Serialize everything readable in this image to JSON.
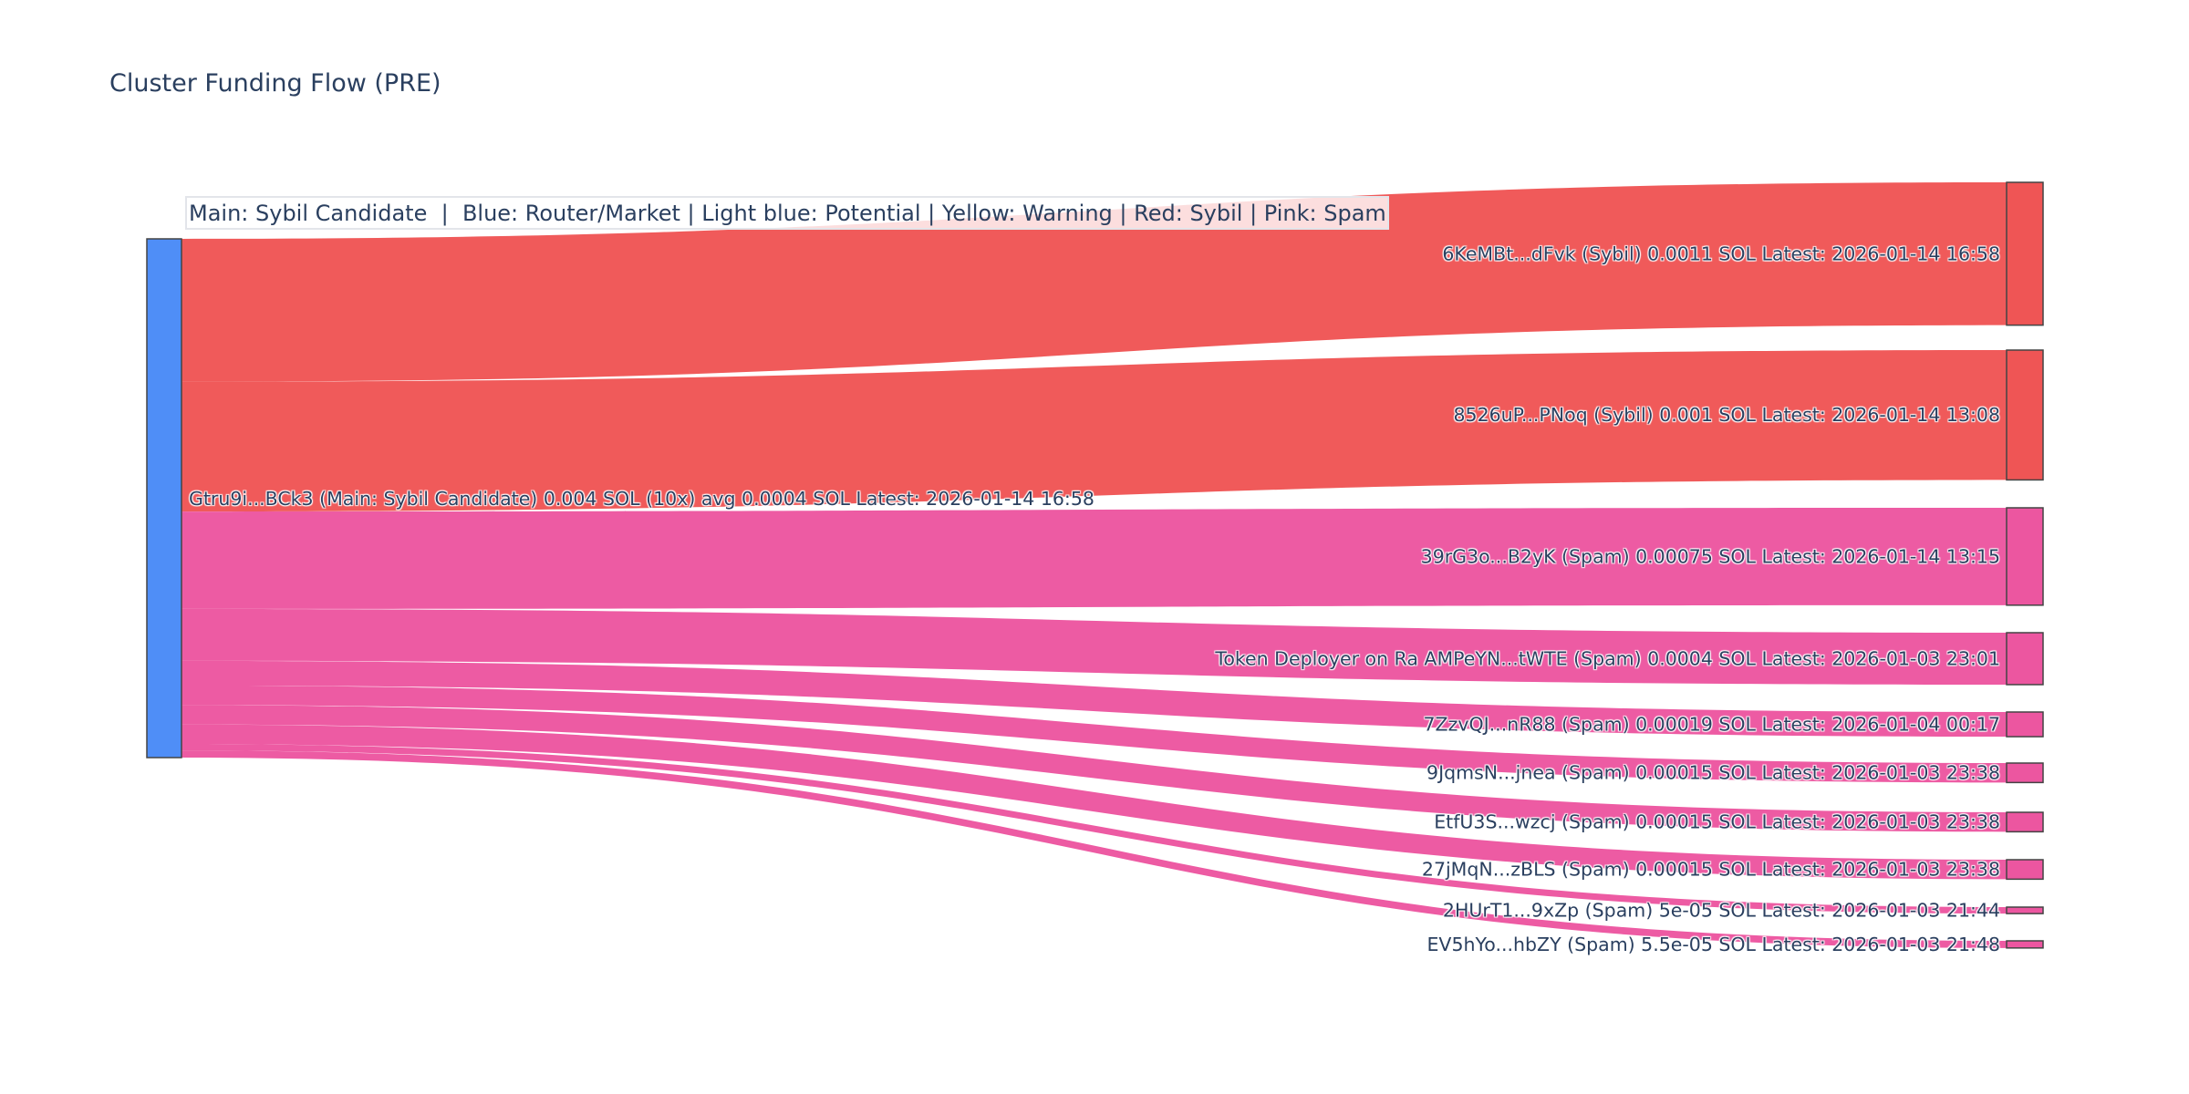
{
  "chart_data": {
    "type": "sankey",
    "title": "Cluster Funding Flow (PRE)",
    "annotation": "Main: Sybil Candidate  |  Blue: Router/Market | Light blue: Potential | Yellow: Warning | Red: Sybil | Pink: Spam",
    "colors": {
      "main": "#4f8ef7",
      "sybil": "#ef5555",
      "spam": "#ec56a0",
      "text": "#2a3f5f"
    },
    "source": {
      "label": "Gtru9i...BCk3 (Main: Sybil Candidate) 0.004 SOL (10x) avg 0.0004 SOL Latest: 2026-01-14 16:58",
      "category": "main",
      "value": 0.004
    },
    "targets": [
      {
        "label": "6KeMBt...dFvk (Sybil) 0.0011 SOL Latest: 2026-01-14 16:58",
        "category": "sybil",
        "value": 0.0011
      },
      {
        "label": "8526uP...PNoq (Sybil) 0.001 SOL Latest: 2026-01-14 13:08",
        "category": "sybil",
        "value": 0.001
      },
      {
        "label": "39rG3o...B2yK (Spam) 0.00075 SOL Latest: 2026-01-14 13:15",
        "category": "spam",
        "value": 0.00075
      },
      {
        "label": "Token Deployer on Ra AMPeYN...tWTE (Spam) 0.0004 SOL Latest: 2026-01-03 23:01",
        "category": "spam",
        "value": 0.0004
      },
      {
        "label": "7ZzvQJ...nR88 (Spam) 0.00019 SOL Latest: 2026-01-04 00:17",
        "category": "spam",
        "value": 0.00019
      },
      {
        "label": "9JqmsN...jnea (Spam) 0.00015 SOL Latest: 2026-01-03 23:38",
        "category": "spam",
        "value": 0.00015
      },
      {
        "label": "EtfU3S...wzcj (Spam) 0.00015 SOL Latest: 2026-01-03 23:38",
        "category": "spam",
        "value": 0.00015
      },
      {
        "label": "27jMqN...zBLS (Spam) 0.00015 SOL Latest: 2026-01-03 23:38",
        "category": "spam",
        "value": 0.00015
      },
      {
        "label": "2HUrT1...9xZp (Spam) 5e-05 SOL Latest: 2026-01-03 21:44",
        "category": "spam",
        "value": 5e-05
      },
      {
        "label": "EV5hYo...hbZY (Spam) 5.5e-05 SOL Latest: 2026-01-03 21:48",
        "category": "spam",
        "value": 5.5e-05
      }
    ]
  }
}
